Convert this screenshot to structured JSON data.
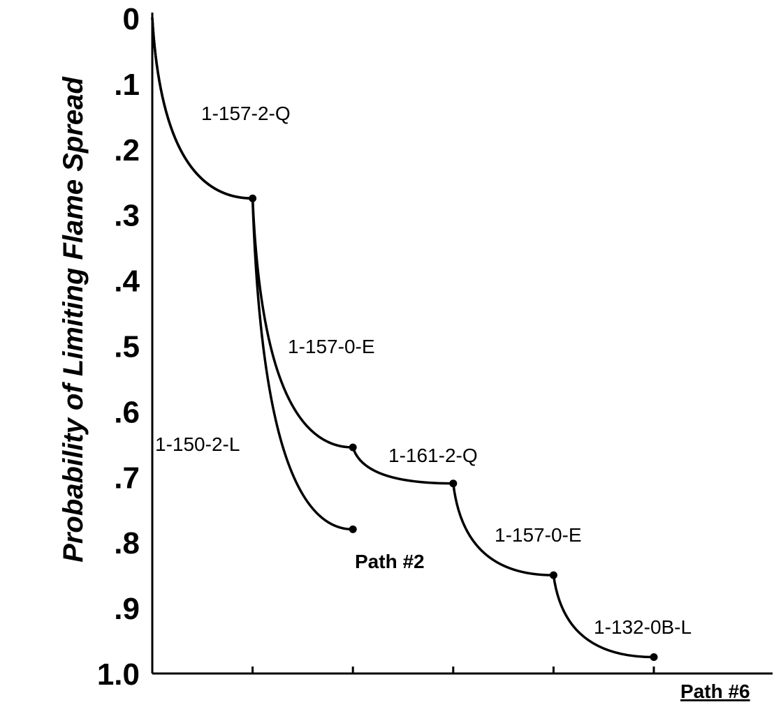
{
  "chart_data": {
    "type": "line",
    "title": "",
    "xlabel": "",
    "ylabel": "Probability of Limiting Flame Spread",
    "ylim": [
      0,
      1.0
    ],
    "y_inverted": true,
    "y_ticks": [
      "0",
      ".1",
      ".2",
      ".3",
      ".4",
      ".5",
      ".6",
      ".7",
      ".8",
      ".9",
      "1.0"
    ],
    "x_ticks": [
      0,
      1,
      2,
      3,
      4,
      5
    ],
    "x_tick_labels": [],
    "grid": false,
    "series": [
      {
        "name": "Path #2",
        "points": [
          {
            "x": 0,
            "y": 0.0
          },
          {
            "x": 1,
            "y": 0.275
          },
          {
            "x": 2,
            "y": 0.78
          }
        ],
        "segment_labels": [
          "1-157-2-Q",
          "1-150-2-L"
        ]
      },
      {
        "name": "Path #6",
        "points": [
          {
            "x": 0,
            "y": 0.0
          },
          {
            "x": 1,
            "y": 0.275
          },
          {
            "x": 2,
            "y": 0.655
          },
          {
            "x": 3,
            "y": 0.71
          },
          {
            "x": 4,
            "y": 0.85
          },
          {
            "x": 5,
            "y": 0.975
          }
        ],
        "segment_labels": [
          "1-157-2-Q",
          "1-157-0-E",
          "1-161-2-Q",
          "1-157-0-E",
          "1-132-0B-L"
        ]
      }
    ]
  }
}
